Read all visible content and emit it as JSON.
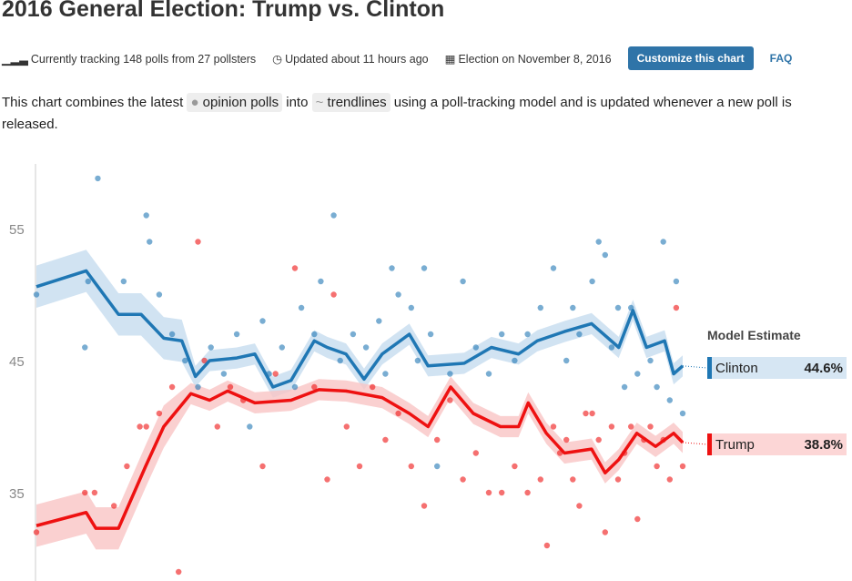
{
  "title": "2016 General Election: Trump vs. Clinton",
  "meta": {
    "tracking": "Currently tracking 148 polls from 27 pollsters",
    "updated": "Updated about 11 hours ago",
    "election": "Election on November 8, 2016",
    "customize": "Customize this chart",
    "faq": "FAQ"
  },
  "desc": {
    "pre": "This chart combines the latest ",
    "polls": "opinion polls",
    "mid": " into ",
    "trend": "trendlines",
    "post": " using a poll-tracking model and is updated whenever a new poll is released."
  },
  "colors": {
    "clinton": "#1f77b4",
    "trump": "#ee1111"
  },
  "chart_data": {
    "type": "line",
    "yticks": [
      "55",
      "45",
      "35"
    ],
    "ylim": [
      29.5,
      59
    ],
    "xlim": [
      0,
      100
    ],
    "legend_title": "Model Estimate",
    "series": [
      {
        "name": "Clinton",
        "estimate": "44.6%",
        "x": [
          0,
          7.7,
          12.7,
          16.2,
          19.7,
          22.5,
          24.6,
          26.8,
          31,
          33.8,
          36.6,
          39.4,
          43,
          45,
          47.9,
          50.7,
          53.5,
          57.7,
          60.6,
          66.2,
          70.4,
          74.6,
          77.5,
          81.7,
          85.9,
          90.1,
          92.3,
          94.4,
          97.2,
          98.6,
          100
        ],
        "y": [
          50.6,
          51.8,
          48.5,
          48.5,
          46.7,
          46.5,
          43.8,
          45,
          45.2,
          45.5,
          43,
          43.5,
          46.5,
          46,
          45.5,
          43.6,
          45.5,
          47,
          44.6,
          44.8,
          46,
          45.5,
          46.5,
          47.2,
          47.8,
          46,
          48.8,
          46,
          46.5,
          44,
          44.6
        ]
      },
      {
        "name": "Trump",
        "estimate": "38.8%",
        "x": [
          0,
          7.7,
          9.2,
          12.7,
          16.9,
          19.7,
          23.9,
          26.8,
          29.6,
          33.8,
          39.4,
          43.7,
          47.9,
          53.5,
          57.7,
          60.6,
          64.1,
          67.6,
          71.8,
          74.6,
          76.1,
          78.9,
          81.7,
          85.9,
          88,
          90.1,
          92.9,
          95.8,
          98.6,
          100
        ],
        "y": [
          32.5,
          33.5,
          32.3,
          32.3,
          37,
          40,
          42.5,
          42,
          42.7,
          41.8,
          42,
          42.8,
          42.7,
          42.2,
          41,
          40,
          43,
          41,
          40,
          40,
          41.8,
          39.5,
          38,
          38.3,
          36.5,
          37.5,
          39.5,
          38.5,
          39.5,
          38.8
        ]
      }
    ],
    "polls": {
      "clinton": [
        [
          0,
          50
        ],
        [
          9.5,
          58.8
        ],
        [
          8,
          51
        ],
        [
          7.5,
          46
        ],
        [
          13.5,
          51
        ],
        [
          17,
          56
        ],
        [
          17.5,
          54
        ],
        [
          19,
          50
        ],
        [
          21,
          47
        ],
        [
          23,
          45
        ],
        [
          25,
          43
        ],
        [
          27,
          46
        ],
        [
          29,
          44
        ],
        [
          31,
          47
        ],
        [
          33,
          40
        ],
        [
          35,
          48
        ],
        [
          36,
          44
        ],
        [
          38,
          46
        ],
        [
          40,
          43
        ],
        [
          41,
          49
        ],
        [
          43,
          47
        ],
        [
          44,
          51
        ],
        [
          46,
          56
        ],
        [
          47,
          45
        ],
        [
          49,
          47
        ],
        [
          51,
          46
        ],
        [
          53,
          48
        ],
        [
          54,
          44
        ],
        [
          55,
          52
        ],
        [
          56,
          50
        ],
        [
          58,
          49
        ],
        [
          59,
          45
        ],
        [
          60,
          52
        ],
        [
          61,
          47
        ],
        [
          62,
          37
        ],
        [
          64,
          44
        ],
        [
          66,
          51
        ],
        [
          68,
          46
        ],
        [
          70,
          44
        ],
        [
          72,
          47
        ],
        [
          74,
          45
        ],
        [
          76,
          47
        ],
        [
          78,
          49
        ],
        [
          80,
          52
        ],
        [
          82,
          45
        ],
        [
          83,
          49
        ],
        [
          84,
          47
        ],
        [
          86,
          51
        ],
        [
          87,
          54
        ],
        [
          88,
          53
        ],
        [
          89,
          46
        ],
        [
          90,
          49
        ],
        [
          91,
          43
        ],
        [
          92,
          49
        ],
        [
          93,
          44
        ],
        [
          95,
          45
        ],
        [
          96,
          43
        ],
        [
          97,
          54
        ],
        [
          98,
          42
        ],
        [
          99,
          51
        ],
        [
          100,
          41
        ]
      ],
      "trump": [
        [
          0,
          32
        ],
        [
          7.5,
          35
        ],
        [
          9,
          35
        ],
        [
          12,
          34
        ],
        [
          14,
          37
        ],
        [
          16,
          40
        ],
        [
          17,
          40
        ],
        [
          19,
          41
        ],
        [
          21,
          43
        ],
        [
          22,
          29
        ],
        [
          25,
          54
        ],
        [
          26,
          45
        ],
        [
          28,
          40
        ],
        [
          30,
          43
        ],
        [
          32,
          42
        ],
        [
          35,
          37
        ],
        [
          37,
          44
        ],
        [
          40,
          52
        ],
        [
          43,
          43
        ],
        [
          45,
          36
        ],
        [
          46,
          50
        ],
        [
          48,
          40
        ],
        [
          50,
          37
        ],
        [
          52,
          43
        ],
        [
          54,
          39
        ],
        [
          56,
          41
        ],
        [
          58,
          37
        ],
        [
          60,
          34
        ],
        [
          62,
          39
        ],
        [
          64,
          42
        ],
        [
          66,
          36
        ],
        [
          68,
          38
        ],
        [
          70,
          35
        ],
        [
          72,
          35
        ],
        [
          74,
          37
        ],
        [
          76,
          35
        ],
        [
          78,
          36
        ],
        [
          79,
          31
        ],
        [
          80,
          40
        ],
        [
          81,
          38
        ],
        [
          82,
          39
        ],
        [
          83,
          36
        ],
        [
          84,
          34
        ],
        [
          85,
          41
        ],
        [
          86,
          41
        ],
        [
          87,
          39
        ],
        [
          88,
          32
        ],
        [
          89,
          40
        ],
        [
          90,
          36
        ],
        [
          91,
          38
        ],
        [
          92,
          40
        ],
        [
          93,
          33
        ],
        [
          94,
          39
        ],
        [
          95,
          40
        ],
        [
          96,
          37
        ],
        [
          97,
          39
        ],
        [
          98,
          36
        ],
        [
          99,
          49
        ],
        [
          100,
          37
        ]
      ]
    }
  }
}
